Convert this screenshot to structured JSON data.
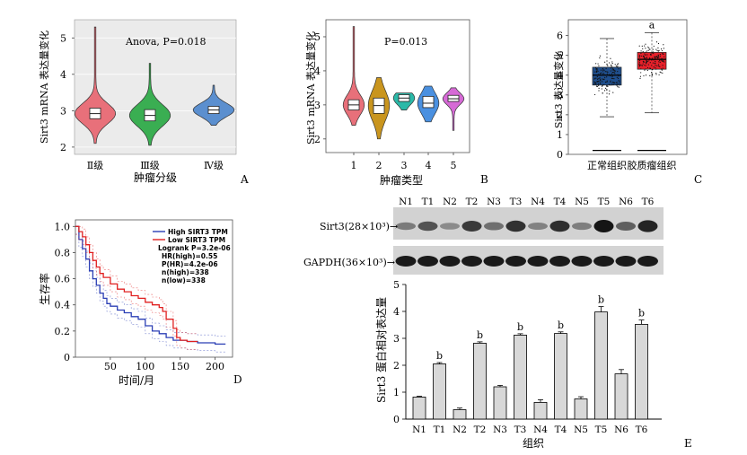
{
  "panels": {
    "A": {
      "letter": "A",
      "ylabel": "Sirt3 mRNA 表达量变化",
      "xlabel": "肿瘤分级",
      "annotation": "Anova, P=0.018",
      "yticks": [
        "2",
        "3",
        "4",
        "5"
      ],
      "categories": [
        "Ⅱ级",
        "Ⅲ级",
        "Ⅳ级"
      ],
      "colors": [
        "#e8707a",
        "#3aae52",
        "#5b8fcf"
      ]
    },
    "B": {
      "letter": "B",
      "ylabel": "Sirt3 mRNA 表达量变化",
      "xlabel": "肿瘤类型",
      "annotation": "P=0.013",
      "yticks": [
        "2",
        "3",
        "4",
        "5"
      ],
      "categories": [
        "1",
        "2",
        "3",
        "4",
        "5"
      ],
      "colors": [
        "#e8707a",
        "#c9951e",
        "#2bb9a8",
        "#4a90e0",
        "#d66ad6"
      ]
    },
    "C": {
      "letter": "C",
      "ylabel": "Sirt3 表达量变化",
      "yticks": [
        "0",
        "1",
        "2",
        "3",
        "4",
        "5",
        "6"
      ],
      "categories": [
        "正常组织",
        "胶质瘤组织"
      ],
      "sig": "a",
      "colors": [
        "#1f4e8c",
        "#e8202a"
      ]
    },
    "D": {
      "letter": "D",
      "ylabel": "生存率",
      "xlabel": "时间/月",
      "yticks": [
        "0",
        "0.2",
        "0.4",
        "0.6",
        "0.8",
        "1.0"
      ],
      "xticks": [
        "50",
        "100",
        "150",
        "200"
      ],
      "legend": [
        "High SIRT3 TPM",
        "Low  SIRT3 TPM"
      ],
      "stats": [
        "Logrank  P=3.2e-06",
        "HR(high)=0.55",
        "P(HR)=4.2e-06",
        "n(high)=338",
        "n(low)=338"
      ],
      "colors": {
        "high": "#2b3fb5",
        "low": "#e02020"
      }
    },
    "E": {
      "letter": "E",
      "lanes": [
        "N1",
        "T1",
        "N2",
        "T2",
        "N3",
        "T3",
        "N4",
        "T4",
        "N5",
        "T5",
        "N6",
        "T6"
      ],
      "blot_labels": [
        "Sirt3(28×10³)→",
        "GAPDH(36×10³)→"
      ],
      "ylabel": "Sirt3 蛋白相对表达量",
      "xlabel": "组织",
      "yticks": [
        "0",
        "1",
        "2",
        "3",
        "4",
        "5"
      ],
      "sig": "b"
    }
  },
  "chart_data": [
    {
      "type": "violin",
      "panel": "A",
      "categories": [
        "Ⅱ级",
        "Ⅲ级",
        "Ⅳ级"
      ],
      "medians": [
        2.92,
        2.87,
        3.02
      ],
      "q1": [
        2.78,
        2.72,
        2.92
      ],
      "q3": [
        3.07,
        3.03,
        3.12
      ],
      "min": [
        2.1,
        2.05,
        2.6
      ],
      "max": [
        5.3,
        4.3,
        3.7
      ],
      "ylim": [
        1.8,
        5.5
      ]
    },
    {
      "type": "violin",
      "panel": "B",
      "categories": [
        "1",
        "2",
        "3",
        "4",
        "5"
      ],
      "medians": [
        3.0,
        2.98,
        3.2,
        3.05,
        3.18
      ],
      "q1": [
        2.85,
        2.75,
        3.1,
        2.92,
        3.1
      ],
      "q3": [
        3.15,
        3.2,
        3.3,
        3.25,
        3.28
      ],
      "min": [
        2.4,
        2.0,
        2.85,
        2.5,
        2.25
      ],
      "max": [
        5.3,
        3.8,
        3.35,
        3.55,
        3.5
      ],
      "ylim": [
        1.6,
        5.5
      ]
    },
    {
      "type": "box",
      "panel": "C",
      "categories": [
        "正常组织",
        "胶质瘤组织"
      ],
      "medians": [
        4.0,
        4.8
      ],
      "q1": [
        3.5,
        4.3
      ],
      "q3": [
        4.4,
        5.15
      ],
      "whisker_low": [
        1.9,
        2.1
      ],
      "whisker_high": [
        5.85,
        6.15
      ],
      "ylim": [
        0,
        6.8
      ]
    },
    {
      "type": "line",
      "panel": "D",
      "xlim": [
        0,
        225
      ],
      "ylim": [
        0,
        1.05
      ],
      "series": [
        {
          "name": "High SIRT3 TPM",
          "x": [
            0,
            5,
            10,
            15,
            20,
            25,
            30,
            35,
            40,
            45,
            50,
            60,
            70,
            80,
            90,
            100,
            110,
            120,
            130,
            140,
            150,
            160,
            175,
            200,
            215
          ],
          "y": [
            1.0,
            0.9,
            0.83,
            0.75,
            0.66,
            0.6,
            0.55,
            0.49,
            0.45,
            0.41,
            0.39,
            0.36,
            0.34,
            0.31,
            0.29,
            0.24,
            0.2,
            0.18,
            0.15,
            0.13,
            0.13,
            0.12,
            0.11,
            0.1,
            0.1
          ]
        },
        {
          "name": "Low  SIRT3 TPM",
          "x": [
            0,
            5,
            10,
            15,
            20,
            25,
            30,
            35,
            40,
            50,
            60,
            70,
            80,
            90,
            100,
            110,
            120,
            125,
            130,
            140,
            145,
            150,
            160,
            175
          ],
          "y": [
            1.0,
            0.96,
            0.92,
            0.86,
            0.8,
            0.74,
            0.69,
            0.64,
            0.61,
            0.56,
            0.52,
            0.5,
            0.47,
            0.45,
            0.42,
            0.4,
            0.38,
            0.35,
            0.29,
            0.22,
            0.15,
            0.13,
            0.12,
            0.12
          ]
        }
      ]
    },
    {
      "type": "bar",
      "panel": "E",
      "categories": [
        "N1",
        "T1",
        "N2",
        "T2",
        "N3",
        "T3",
        "N4",
        "T4",
        "N5",
        "T5",
        "N6",
        "T6"
      ],
      "values": [
        0.82,
        2.05,
        0.35,
        2.82,
        1.2,
        3.12,
        0.62,
        3.18,
        0.75,
        3.98,
        1.68,
        3.52
      ],
      "errors": [
        0.03,
        0.05,
        0.06,
        0.05,
        0.05,
        0.05,
        0.1,
        0.06,
        0.08,
        0.2,
        0.16,
        0.16
      ],
      "significant": [
        false,
        true,
        false,
        true,
        false,
        true,
        false,
        true,
        false,
        true,
        false,
        true
      ],
      "ylim": [
        0,
        5
      ]
    }
  ]
}
